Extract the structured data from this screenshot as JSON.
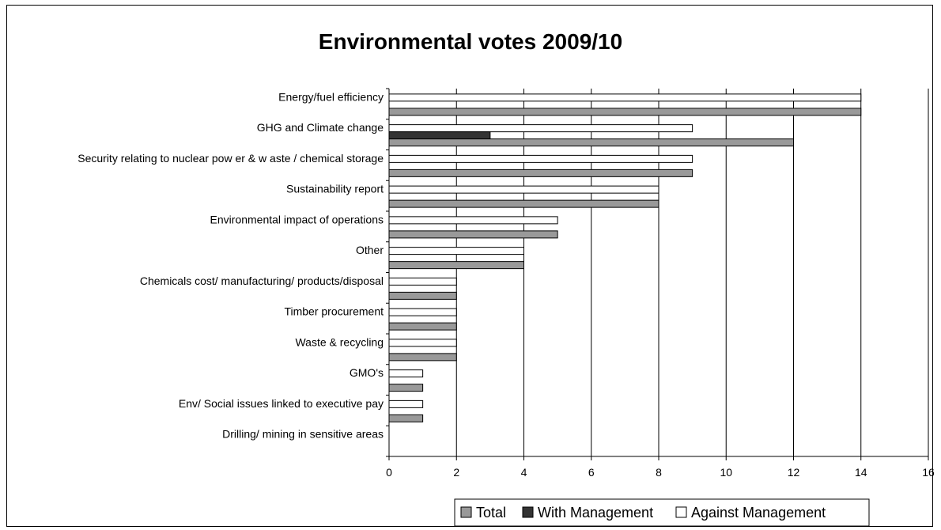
{
  "chart_data": {
    "type": "bar",
    "orientation": "horizontal",
    "title": "Environmental votes 2009/10",
    "xlabel": "",
    "ylabel": "",
    "xlim": [
      0,
      16
    ],
    "xticks": [
      0,
      2,
      4,
      6,
      8,
      10,
      12,
      14,
      16
    ],
    "grid": "vertical",
    "legend_position": "bottom",
    "categories": [
      "Energy/fuel efficiency",
      "GHG and Climate change",
      "Security relating to nuclear pow er & w aste / chemical storage",
      "Sustainability report",
      "Environmental impact of operations",
      "Other",
      "Chemicals cost/ manufacturing/ products/disposal",
      "Timber procurement",
      "Waste & recycling",
      "GMO's",
      "Env/ Social issues linked to executive pay",
      "Drilling/ mining in sensitive areas"
    ],
    "series": [
      {
        "name": "Total",
        "color": "#999999",
        "values": [
          14,
          12,
          9,
          8,
          5,
          4,
          2,
          2,
          2,
          1,
          1,
          0
        ]
      },
      {
        "name": "With Management",
        "color": "#333333",
        "values": [
          0,
          3,
          0,
          0,
          0,
          0,
          0,
          0,
          0,
          0,
          0,
          0
        ]
      },
      {
        "name": "Against Management",
        "color": "#ffffff",
        "values": [
          14,
          9,
          9,
          8,
          5,
          4,
          2,
          2,
          2,
          1,
          1,
          0
        ]
      }
    ]
  }
}
